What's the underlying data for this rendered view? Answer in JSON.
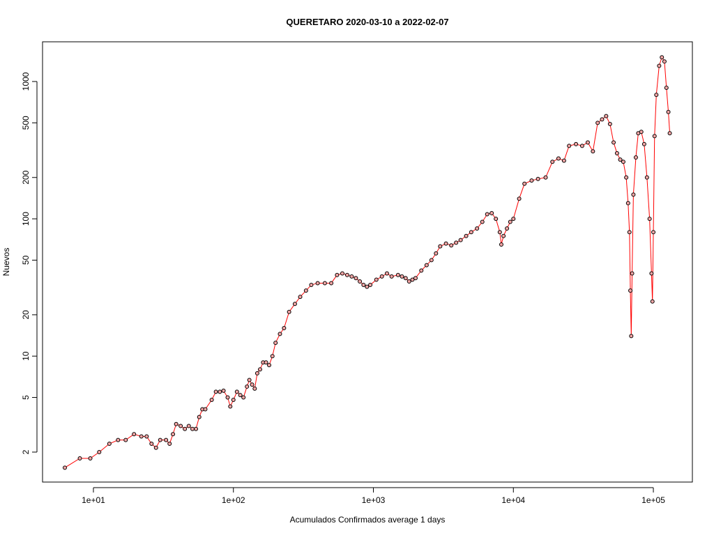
{
  "chart_data": {
    "type": "scatter-line",
    "title": "QUERETARO 2020-03-10 a 2022-02-07",
    "xlabel": "Acumulados Confirmados average  1  days",
    "ylabel": "Nuevos",
    "xscale": "log",
    "yscale": "log",
    "line_color": "#ff0000",
    "marker_color": "#000000",
    "xlim": [
      4.33,
      190000
    ],
    "ylim": [
      1.21,
      1946
    ],
    "xticks": [
      {
        "value": 10,
        "label": "1e+01"
      },
      {
        "value": 100,
        "label": "1e+02"
      },
      {
        "value": 1000,
        "label": "1e+03"
      },
      {
        "value": 10000,
        "label": "1e+04"
      },
      {
        "value": 100000,
        "label": "1e+05"
      }
    ],
    "yticks": [
      2,
      5,
      10,
      20,
      50,
      100,
      200,
      500,
      1000
    ],
    "x": [
      6.25,
      8,
      9.5,
      11,
      13,
      15,
      17,
      19.5,
      22,
      24,
      26,
      28,
      30,
      33,
      35,
      37,
      39,
      42,
      45,
      48,
      51,
      54,
      57,
      60,
      63,
      70,
      75,
      80,
      85,
      91,
      95,
      100,
      106,
      112,
      118,
      125,
      130,
      136,
      142,
      148,
      155,
      163,
      171,
      180,
      190,
      200,
      215,
      230,
      250,
      275,
      300,
      330,
      360,
      400,
      450,
      500,
      550,
      600,
      650,
      700,
      750,
      800,
      850,
      900,
      950,
      1050,
      1150,
      1250,
      1350,
      1500,
      1600,
      1700,
      1800,
      1900,
      2000,
      2200,
      2400,
      2600,
      2800,
      3000,
      3300,
      3600,
      3900,
      4200,
      4600,
      5000,
      5500,
      6000,
      6500,
      7000,
      7500,
      8000,
      8200,
      8500,
      9000,
      9500,
      10000,
      11000,
      12000,
      13500,
      15000,
      17000,
      19000,
      21000,
      23000,
      25000,
      28000,
      31000,
      34000,
      37000,
      40000,
      43000,
      46000,
      49000,
      52000,
      55000,
      58000,
      61000,
      64000,
      66000,
      67500,
      68500,
      69500,
      70500,
      72000,
      75000,
      78000,
      82000,
      86000,
      90000,
      94000,
      97000,
      98500,
      100000,
      102000,
      105000,
      110000,
      115000,
      120000,
      124000,
      128000,
      131000
    ],
    "values": [
      1.54,
      1.8,
      1.8,
      2.0,
      2.3,
      2.45,
      2.45,
      2.7,
      2.6,
      2.6,
      2.3,
      2.15,
      2.45,
      2.45,
      2.3,
      2.7,
      3.2,
      3.1,
      2.95,
      3.1,
      2.95,
      2.95,
      3.6,
      4.1,
      4.1,
      4.8,
      5.5,
      5.5,
      5.6,
      5.0,
      4.3,
      4.8,
      5.5,
      5.2,
      5.0,
      6.0,
      6.7,
      6.2,
      5.8,
      7.5,
      8.0,
      9.0,
      9.0,
      8.6,
      10,
      12.5,
      14.5,
      16,
      21,
      24,
      27,
      30,
      33,
      34,
      34,
      34,
      39,
      40,
      39,
      38,
      37,
      35,
      33,
      32,
      33,
      36,
      38,
      40,
      38,
      39,
      38,
      37,
      35,
      36,
      37,
      42,
      46,
      50,
      56,
      63,
      66,
      64,
      67,
      70,
      75,
      80,
      85,
      95,
      108,
      110,
      100,
      80,
      65,
      75,
      85,
      95,
      100,
      140,
      180,
      190,
      195,
      200,
      260,
      275,
      265,
      340,
      350,
      340,
      360,
      310,
      500,
      530,
      560,
      490,
      360,
      300,
      270,
      260,
      200,
      130,
      80,
      30,
      14,
      40,
      150,
      280,
      420,
      430,
      350,
      200,
      100,
      40,
      25,
      80,
      400,
      800,
      1300,
      1500,
      1400,
      900,
      600,
      420
    ]
  }
}
